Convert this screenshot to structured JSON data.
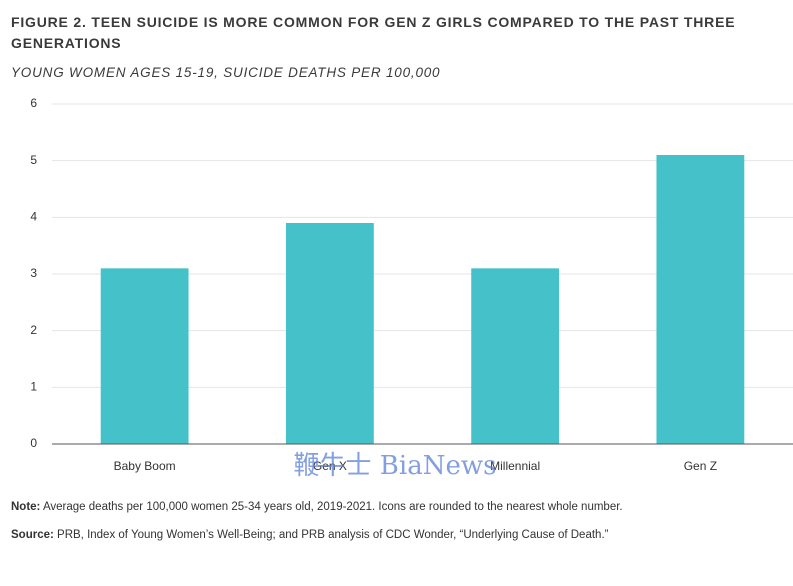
{
  "chart_data": {
    "type": "bar",
    "title": "FIGURE 2. TEEN SUICIDE IS MORE COMMON FOR GEN Z GIRLS COMPARED TO THE PAST THREE GENERATIONS",
    "subtitle": "YOUNG WOMEN AGES 15-19, SUICIDE DEATHS PER 100,000",
    "categories": [
      "Baby Boom",
      "Gen X",
      "Millennial",
      "Gen Z"
    ],
    "values": [
      3.1,
      3.9,
      3.1,
      5.1
    ],
    "color": "#45c2c9",
    "ylim": [
      0,
      6
    ],
    "yticks": [
      0,
      1,
      2,
      3,
      4,
      5,
      6
    ],
    "grid": true
  },
  "note": {
    "label": "Note:",
    "text": "Average deaths per 100,000 women 25-34 years old, 2019-2021. Icons are rounded to the nearest whole number."
  },
  "source": {
    "label": "Source:",
    "text": "PRB, Index of Young Women’s Well-Being; and PRB analysis of CDC Wonder, “Underlying Cause of Death.”"
  },
  "watermark": "鞭牛士 BiaNews"
}
